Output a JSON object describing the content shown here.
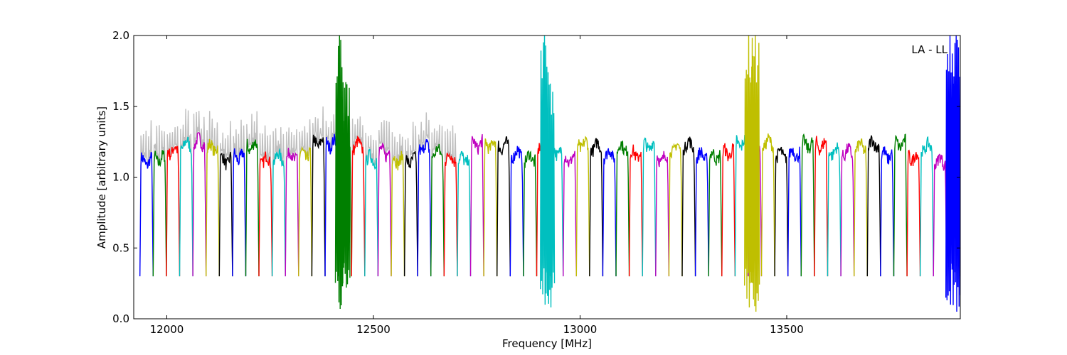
{
  "chart_data": {
    "type": "line",
    "xlabel": "Frequency [MHz]",
    "ylabel": "Amplitude [arbitrary units]",
    "xlim": [
      11920,
      13920
    ],
    "ylim": [
      0.0,
      2.0
    ],
    "xticks": [
      12000,
      12500,
      13000,
      13500
    ],
    "yticks": [
      0.0,
      0.5,
      1.0,
      1.5,
      2.0
    ],
    "xtick_labels": [
      "12000",
      "12500",
      "13000",
      "13500"
    ],
    "ytick_labels": [
      "0.0",
      "0.5",
      "1.0",
      "1.5",
      "2.0"
    ],
    "annotation": "LA - LL",
    "grid": false,
    "background_series_color": "#bfbfbf",
    "channel_colors": [
      "#0000ff",
      "#007f00",
      "#ff0000",
      "#00bfbf",
      "#bf00bf",
      "#bfbf00",
      "#000000"
    ],
    "channel_width_mhz": 32,
    "channel_start_mhz": 11935,
    "channel_count": 62,
    "channel_level": 1.18,
    "channel_trough": 0.3,
    "spikes": [
      {
        "x": 12418,
        "peak": 2.0,
        "trough": 0.07,
        "color": "#007f00"
      },
      {
        "x": 12433,
        "peak": 1.67,
        "trough": 0.22,
        "color": "#007f00"
      },
      {
        "x": 12914,
        "peak": 2.0,
        "trough": 0.1,
        "color": "#00bfbf"
      },
      {
        "x": 12928,
        "peak": 1.66,
        "trough": 0.08,
        "color": "#00bfbf"
      },
      {
        "x": 13408,
        "peak": 2.0,
        "trough": 0.08,
        "color": "#bfbf00"
      },
      {
        "x": 13424,
        "peak": 2.0,
        "trough": 0.05,
        "color": "#bfbf00"
      },
      {
        "x": 13895,
        "peak": 2.0,
        "trough": 0.1,
        "color": "#0000ff"
      },
      {
        "x": 13910,
        "peak": 2.0,
        "trough": 0.05,
        "color": "#0000ff"
      }
    ]
  }
}
